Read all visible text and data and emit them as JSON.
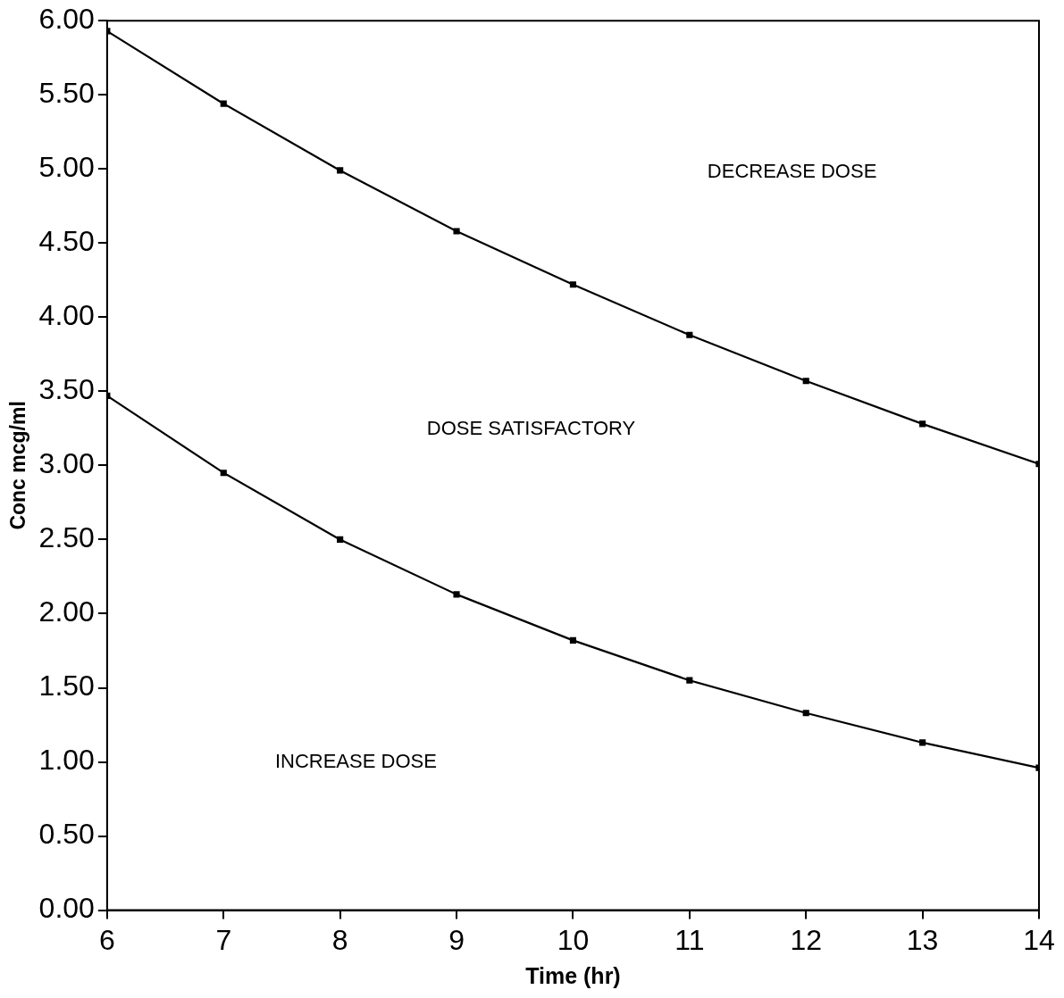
{
  "chart_data": {
    "type": "line",
    "xlabel": "Time (hr)",
    "ylabel": "Conc mcg/ml",
    "x": [
      6,
      7,
      8,
      9,
      10,
      11,
      12,
      13,
      14
    ],
    "series": [
      {
        "color": "#000000",
        "values": [
          5.93,
          5.44,
          4.99,
          4.58,
          4.22,
          3.88,
          3.57,
          3.28,
          3.01
        ]
      },
      {
        "color": "#000000",
        "values": [
          3.47,
          2.95,
          2.5,
          2.13,
          1.82,
          1.55,
          1.33,
          1.13,
          0.96
        ]
      }
    ],
    "xlim": [
      6,
      14
    ],
    "xticks": [
      6,
      7,
      8,
      9,
      10,
      11,
      12,
      13,
      14
    ],
    "ylim": [
      0,
      6
    ],
    "yticks": [
      {
        "value": 0,
        "label": "0.00"
      },
      {
        "value": 0.5,
        "label": "0.50"
      },
      {
        "value": 1,
        "label": "1.00"
      },
      {
        "value": 1.5,
        "label": "1.50"
      },
      {
        "value": 2,
        "label": "2.00"
      },
      {
        "value": 2.5,
        "label": "2.50"
      },
      {
        "value": 3,
        "label": "3.00"
      },
      {
        "value": 3.5,
        "label": "3.50"
      },
      {
        "value": 4,
        "label": "4.00"
      },
      {
        "value": 4.5,
        "label": "4.50"
      },
      {
        "value": 5,
        "label": "5.00"
      },
      {
        "value": 5.5,
        "label": "5.50"
      },
      {
        "value": 6,
        "label": "6.00"
      }
    ],
    "annotations": [
      "DECREASE DOSE",
      "DOSE SATISFACTORY",
      "INCREASE DOSE"
    ],
    "grid": false,
    "legend": false,
    "marker": "square",
    "line_style": "solid"
  }
}
